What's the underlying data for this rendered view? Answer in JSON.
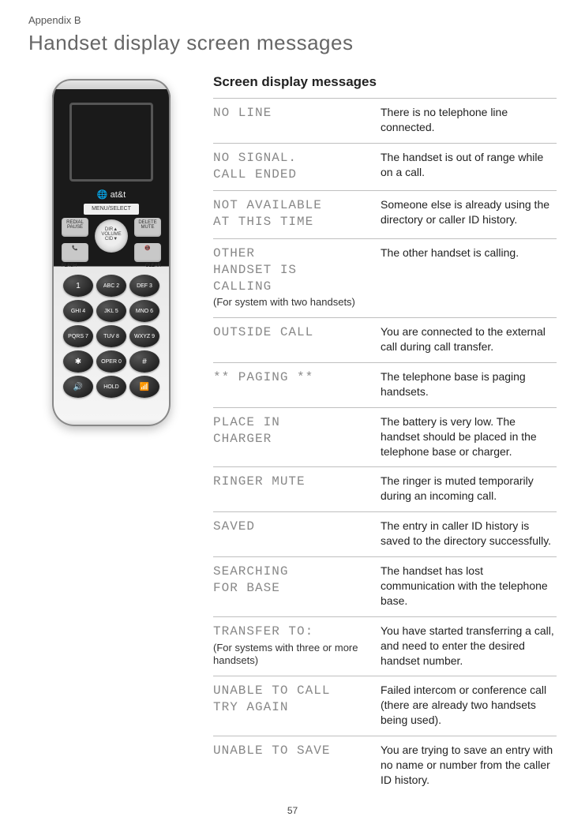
{
  "appendix": "Appendix B",
  "title": "Handset display screen messages",
  "section_title": "Screen display messages",
  "phone": {
    "brand": "at&t",
    "menu": "MENU/SELECT",
    "redial": "REDIAL",
    "pause": "PAUSE",
    "delete": "DELETE",
    "mute": "MUTE",
    "dir": "DIR▲",
    "volume": "VOLUME",
    "cid": "CID▼",
    "home": "HOME",
    "flash": "FLASH",
    "off": "OFF",
    "clear": "CLEAR",
    "keys": [
      "1",
      "ABC 2",
      "DEF 3",
      "GHI 4",
      "JKL 5",
      "MNO 6",
      "PQRS 7",
      "TUV 8",
      "WXYZ 9",
      "✱",
      "OPER 0",
      "#"
    ],
    "speaker": "SPEAKER",
    "hold": "HOLD",
    "cellular": "CELLULAR",
    "spk_icon": "🔊",
    "cell_icon": "📶"
  },
  "rows": [
    {
      "msg": "NO LINE",
      "note": "",
      "desc": "There is no telephone line connected."
    },
    {
      "msg": "NO SIGNAL.\nCALL ENDED",
      "note": "",
      "desc": "The handset is out of range while on a call."
    },
    {
      "msg": "NOT AVAILABLE\n AT THIS TIME",
      "note": "",
      "desc": "Someone else is already using the directory or caller ID history."
    },
    {
      "msg": "   OTHER\nHANDSET IS\n  CALLING",
      "note": "(For system with two handsets)",
      "desc": "The other handset is calling."
    },
    {
      "msg": "OUTSIDE CALL",
      "note": "",
      "desc": "You are connected to the external call during call transfer."
    },
    {
      "msg": "** PAGING **",
      "note": "",
      "desc": "The telephone base is paging handsets."
    },
    {
      "msg": "PLACE IN\n CHARGER",
      "note": "",
      "desc": "The battery is very low. The handset should be placed in the telephone base or charger."
    },
    {
      "msg": "RINGER MUTE",
      "note": "",
      "desc": "The ringer is muted temporarily during an incoming call."
    },
    {
      "msg": "SAVED",
      "note": "",
      "desc": "The entry in caller ID history is saved to the directory successfully."
    },
    {
      "msg": "SEARCHING\nFOR BASE",
      "note": "",
      "desc": "The handset has lost communication with the telephone base."
    },
    {
      "msg": "TRANSFER TO:",
      "note": "(For systems with three or more handsets)",
      "desc": "You have started transferring a call, and need to enter the desired handset number."
    },
    {
      "msg": "UNABLE TO CALL\n   TRY AGAIN",
      "note": "",
      "desc": "Failed intercom or conference call (there are already two handsets being used)."
    },
    {
      "msg": "UNABLE TO SAVE",
      "note": "",
      "desc": "You are trying to save an entry with no name or number from the caller ID history."
    }
  ],
  "page_number": "57"
}
